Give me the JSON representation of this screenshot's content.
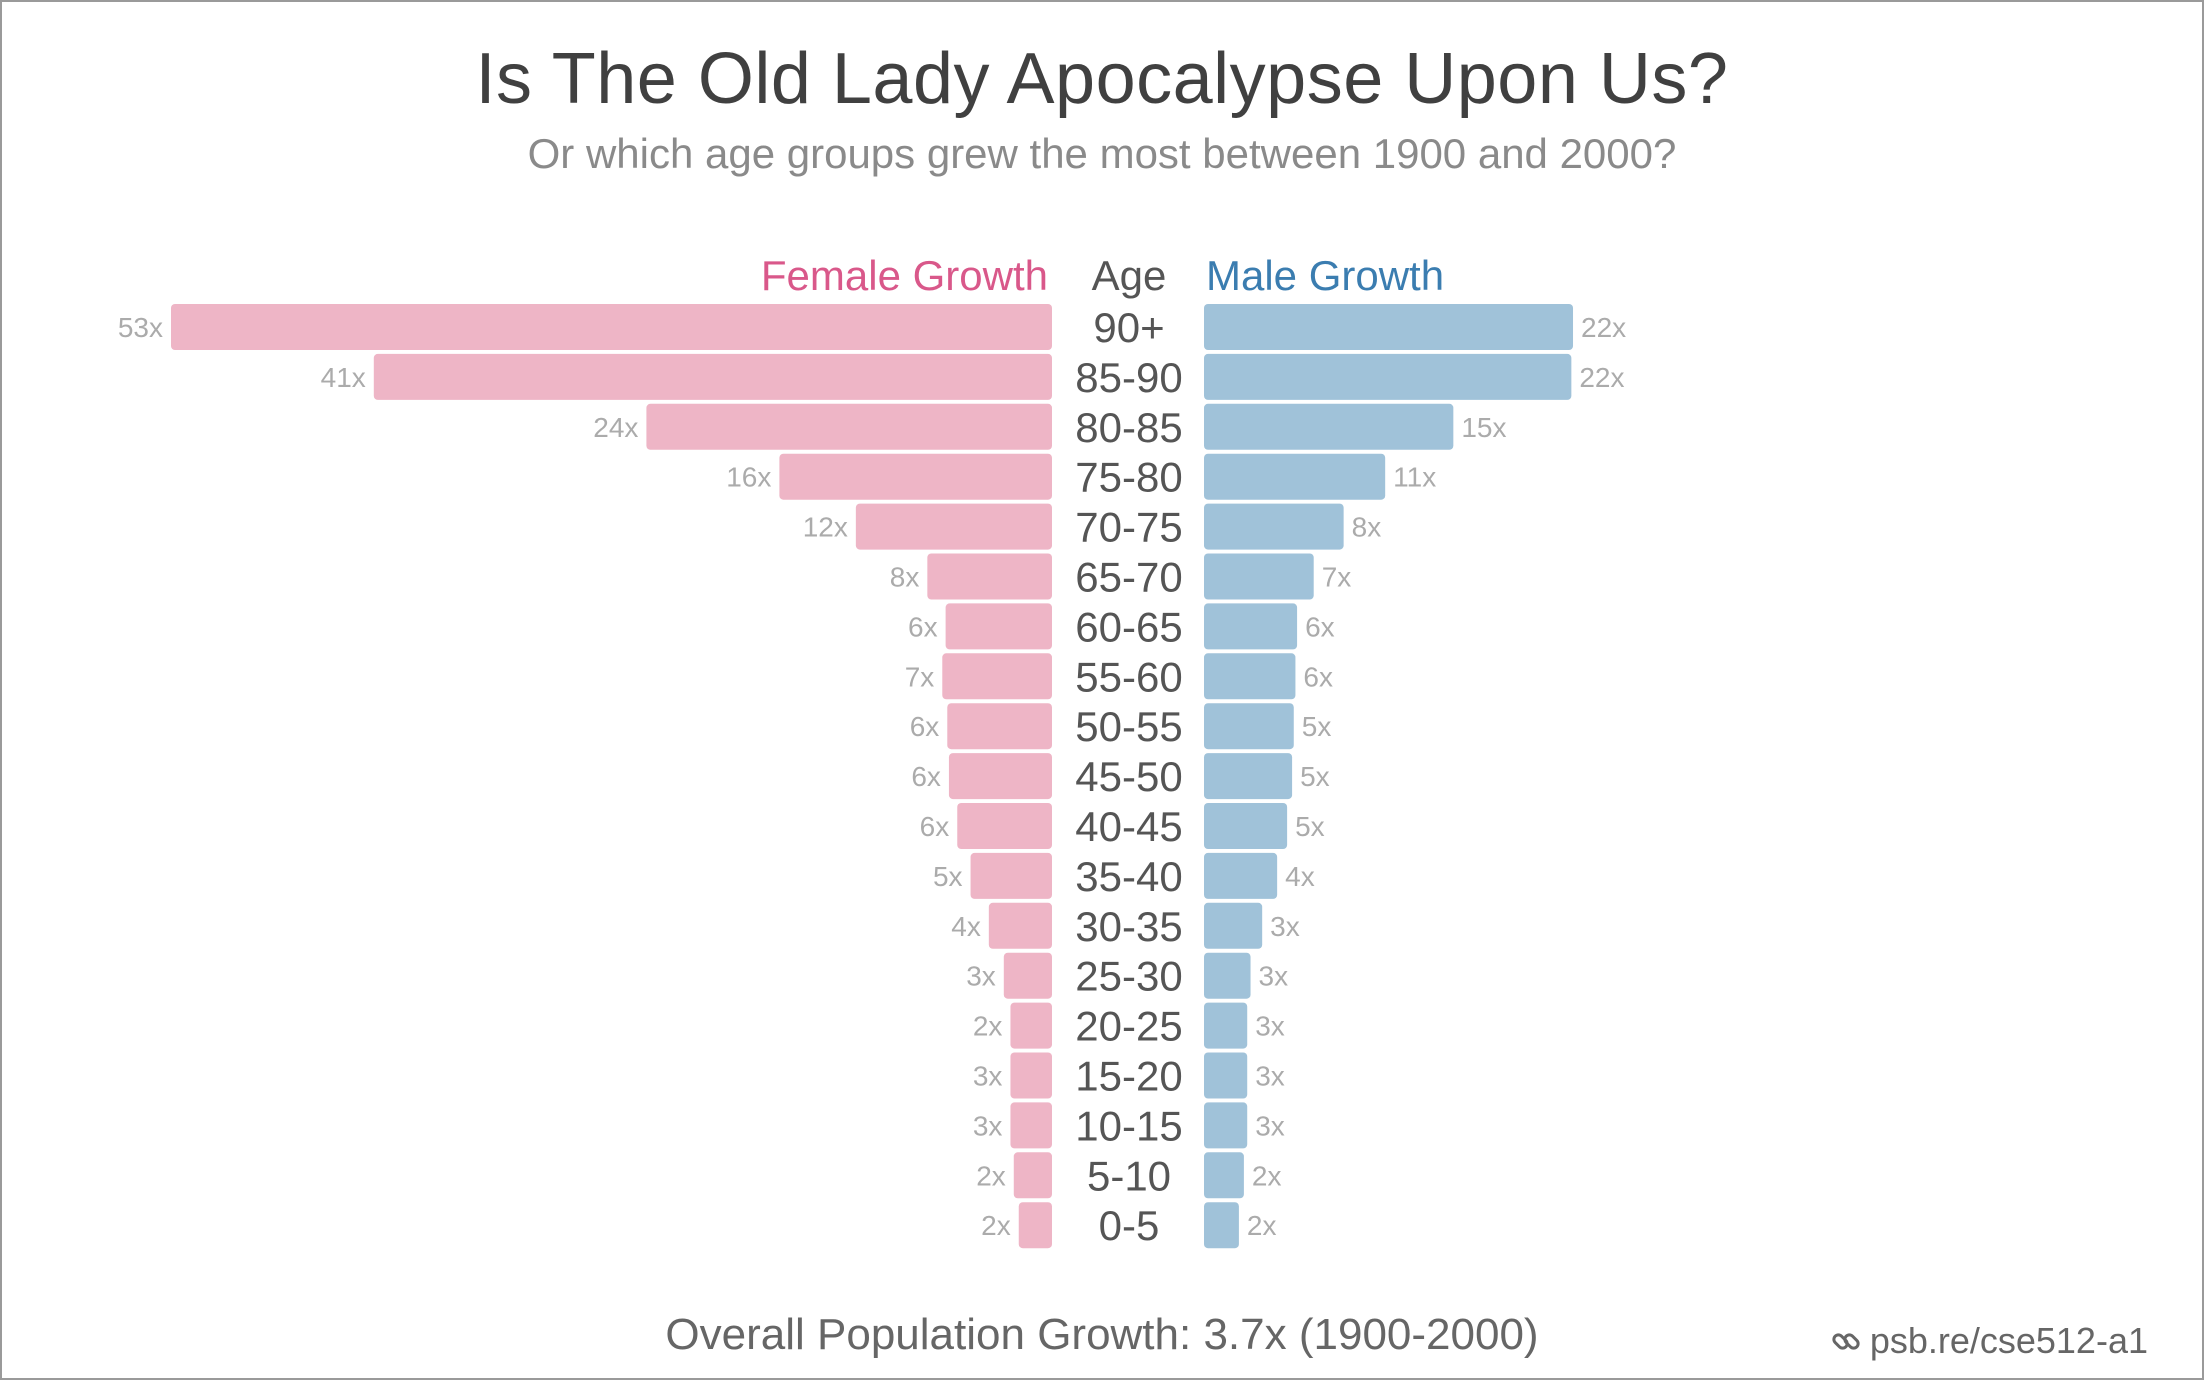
{
  "title": "Is The Old Lady Apocalypse Upon Us?",
  "subtitle": "Or which age groups grew the most between 1900 and 2000?",
  "footer": "Overall Population Growth: 3.7x (1900-2000)",
  "link_text": "psb.re/cse512-a1",
  "colors": {
    "female": "#EEB5C6",
    "male": "#A0C2D9",
    "female_header": "#D9588A",
    "male_header": "#3B7DB0",
    "value_label": "#ABABAB",
    "age_label": "#555555"
  },
  "chart_data": {
    "type": "bar",
    "orientation": "horizontal-butterfly",
    "headers": {
      "female": "Female Growth",
      "age": "Age",
      "male": "Male Growth"
    },
    "categories": [
      "90+",
      "85-90",
      "80-85",
      "75-80",
      "70-75",
      "65-70",
      "60-65",
      "55-60",
      "50-55",
      "45-50",
      "40-45",
      "35-40",
      "30-35",
      "25-30",
      "20-25",
      "15-20",
      "10-15",
      "5-10",
      "0-5"
    ],
    "series": [
      {
        "name": "Female Growth",
        "values": [
          53.0,
          40.8,
          24.4,
          16.4,
          11.8,
          7.5,
          6.4,
          6.6,
          6.3,
          6.2,
          5.7,
          4.9,
          3.8,
          2.9,
          2.5,
          2.5,
          2.5,
          2.3,
          2.0
        ],
        "labels": [
          "53x",
          "41x",
          "24x",
          "16x",
          "12x",
          "8x",
          "6x",
          "7x",
          "6x",
          "6x",
          "6x",
          "5x",
          "4x",
          "3x",
          "2x",
          "3x",
          "3x",
          "2x",
          "2x"
        ]
      },
      {
        "name": "Male Growth",
        "values": [
          22.2,
          22.1,
          15.0,
          10.9,
          8.4,
          6.6,
          5.6,
          5.5,
          5.4,
          5.3,
          5.0,
          4.4,
          3.5,
          2.8,
          2.6,
          2.6,
          2.6,
          2.4,
          2.1
        ],
        "labels": [
          "22x",
          "22x",
          "15x",
          "11x",
          "8x",
          "7x",
          "6x",
          "6x",
          "5x",
          "5x",
          "5x",
          "4x",
          "3x",
          "3x",
          "3x",
          "3x",
          "3x",
          "2x",
          "2x"
        ]
      }
    ]
  }
}
